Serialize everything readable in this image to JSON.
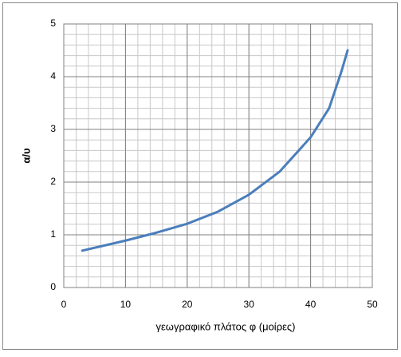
{
  "chart_data": {
    "type": "line",
    "x_label": "γεωγραφικό πλάτος φ (μοίρες)",
    "y_label": "α/υ",
    "x": [
      3,
      10,
      15,
      20,
      25,
      30,
      35,
      40,
      43,
      45,
      46
    ],
    "series": [
      {
        "color": "#4a7ebb",
        "values": [
          0.7,
          0.89,
          1.04,
          1.21,
          1.44,
          1.76,
          2.2,
          2.85,
          3.4,
          4.1,
          4.5
        ]
      }
    ],
    "xlim": [
      0,
      50
    ],
    "ylim": [
      0,
      5
    ],
    "xticks": [
      0,
      10,
      20,
      30,
      40,
      50
    ],
    "yticks": [
      0,
      1,
      2,
      3,
      4,
      5
    ],
    "grid": true,
    "minor_grid": {
      "x": 2,
      "y": 0.2
    }
  }
}
